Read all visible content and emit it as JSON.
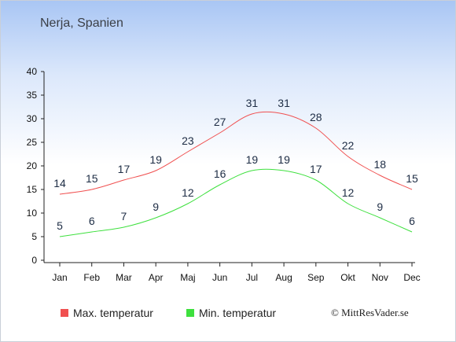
{
  "chart_data": {
    "type": "line",
    "title": "Nerja, Spanien",
    "categories": [
      "Jan",
      "Feb",
      "Mar",
      "Apr",
      "Maj",
      "Jun",
      "Jul",
      "Aug",
      "Sep",
      "Okt",
      "Nov",
      "Dec"
    ],
    "ylim": [
      0,
      40
    ],
    "yticks": [
      0,
      5,
      10,
      15,
      20,
      25,
      30,
      35,
      40
    ],
    "grid": false,
    "legend_position": "bottom-left",
    "series": [
      {
        "name": "Max. temperatur",
        "color": "#f05050",
        "values": [
          14,
          15,
          17,
          19,
          23,
          27,
          31,
          31,
          28,
          22,
          18,
          15
        ]
      },
      {
        "name": "Min. temperatur",
        "color": "#3ee03e",
        "values": [
          5,
          6,
          7,
          9,
          12,
          16,
          19,
          19,
          17,
          12,
          9,
          6
        ]
      }
    ]
  },
  "credit": "© MittResVader.se"
}
